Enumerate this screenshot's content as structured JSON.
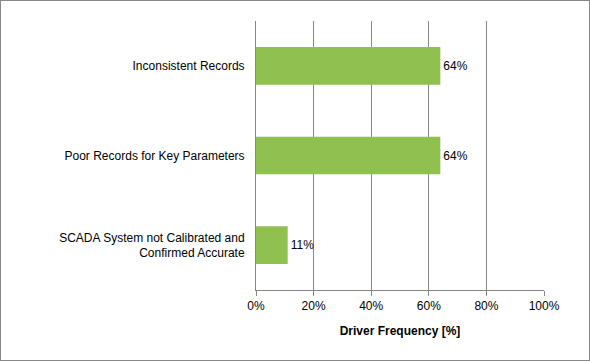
{
  "chart_data": {
    "type": "bar",
    "orientation": "horizontal",
    "categories": [
      "Inconsistent Records",
      "Poor Records for Key Parameters",
      "SCADA System not Calibrated and Confirmed Accurate"
    ],
    "values": [
      64,
      64,
      11
    ],
    "value_labels": [
      "64%",
      "64%",
      "11%"
    ],
    "data_labels": true,
    "color": "#8fc050",
    "x_label": "Driver Frequency [%]",
    "xlim": [
      0,
      100
    ],
    "xticks": [
      {
        "value": 0,
        "label": "0%"
      },
      {
        "value": 20,
        "label": "20%"
      },
      {
        "value": 40,
        "label": "40%"
      },
      {
        "value": 60,
        "label": "60%"
      },
      {
        "value": 80,
        "label": "80%"
      },
      {
        "value": 100,
        "label": "100%"
      }
    ],
    "grid": true
  }
}
